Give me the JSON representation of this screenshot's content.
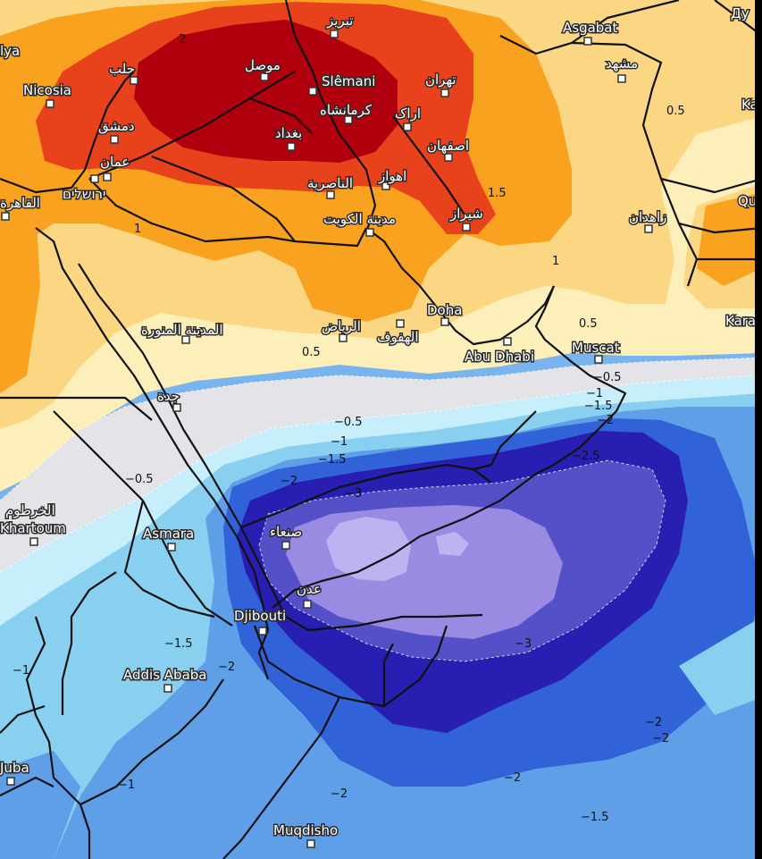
{
  "map": {
    "cities": [
      {
        "id": "asgabat",
        "label": "Asgabat"
      },
      {
        "id": "mashhad",
        "label": "مشهد"
      },
      {
        "id": "tabriz",
        "label": "تبريز"
      },
      {
        "id": "tehran",
        "label": "تهران"
      },
      {
        "id": "aleppo",
        "label": "حلب"
      },
      {
        "id": "mosul",
        "label": "موصل"
      },
      {
        "id": "slemani",
        "label": "Slêmani"
      },
      {
        "id": "nicosia",
        "label": "Nicosia"
      },
      {
        "id": "damascus",
        "label": "دمشق"
      },
      {
        "id": "kermanshah",
        "label": "كرمانشاه"
      },
      {
        "id": "arak",
        "label": "اراک"
      },
      {
        "id": "baghdad",
        "label": "بغداد"
      },
      {
        "id": "amman",
        "label": "عمان"
      },
      {
        "id": "isfahan",
        "label": "اصفهان"
      },
      {
        "id": "jerusalem",
        "label": "ירושלים"
      },
      {
        "id": "cairo",
        "label": "القاهرة"
      },
      {
        "id": "nasiriyah",
        "label": "الناصرية"
      },
      {
        "id": "ahvaz",
        "label": "اهواز"
      },
      {
        "id": "shiraz",
        "label": "شیراز"
      },
      {
        "id": "kuwait",
        "label": "مدينة الكويت"
      },
      {
        "id": "zahedan",
        "label": "زاهدان"
      },
      {
        "id": "doha",
        "label": "Doha"
      },
      {
        "id": "medina",
        "label": "المدينة المنورة"
      },
      {
        "id": "riyadh",
        "label": "الرياض"
      },
      {
        "id": "hofuf",
        "label": "الهفوف"
      },
      {
        "id": "abudhabi",
        "label": "Abu Dhabi"
      },
      {
        "id": "muscat",
        "label": "Muscat"
      },
      {
        "id": "jeddah",
        "label": "جدة"
      },
      {
        "id": "khartoum_ar",
        "label": "الخرطوم"
      },
      {
        "id": "khartoum",
        "label": "Khartoum"
      },
      {
        "id": "asmara",
        "label": "Asmara"
      },
      {
        "id": "sanaa",
        "label": "صنعاء"
      },
      {
        "id": "aden",
        "label": "عدن"
      },
      {
        "id": "djibouti",
        "label": "Djibouti"
      },
      {
        "id": "addis",
        "label": "Addis Ababa"
      },
      {
        "id": "juba",
        "label": "Juba"
      },
      {
        "id": "mogadishu",
        "label": "Muqdisho"
      },
      {
        "id": "karachi",
        "label": "Kara"
      },
      {
        "id": "quetta",
        "label": "Qu"
      },
      {
        "id": "kandahar",
        "label": "Ka"
      },
      {
        "id": "dushanbe",
        "label": "Ду"
      },
      {
        "id": "yalta",
        "label": "lya"
      }
    ],
    "contour_labels": [
      {
        "id": "c-top-2",
        "label": "2"
      },
      {
        "id": "c-1_5-iran",
        "label": "1.5"
      },
      {
        "id": "c-1-iran",
        "label": "1"
      },
      {
        "id": "c-1-jordan",
        "label": "1"
      },
      {
        "id": "c-0_5-ne",
        "label": "0.5"
      },
      {
        "id": "c-0_5-saudi",
        "label": "0.5"
      },
      {
        "id": "c-0_5-oman",
        "label": "0.5"
      },
      {
        "id": "c-neg0_5-a",
        "label": "−0.5"
      },
      {
        "id": "c-neg1-a",
        "label": "−1"
      },
      {
        "id": "c-neg1_5-a",
        "label": "−1.5"
      },
      {
        "id": "c-neg2-a",
        "label": "−2"
      },
      {
        "id": "c-neg3-a",
        "label": "−3"
      },
      {
        "id": "c-neg0_5-sud",
        "label": "−0.5"
      },
      {
        "id": "c-neg0_5-mus",
        "label": "−0.5"
      },
      {
        "id": "c-neg1-mus",
        "label": "−1"
      },
      {
        "id": "c-neg1_5-mus",
        "label": "−1.5"
      },
      {
        "id": "c-neg2-mus",
        "label": "−2"
      },
      {
        "id": "c-neg2_5-mus",
        "label": "−2.5"
      },
      {
        "id": "c-neg3-arab",
        "label": "−3"
      },
      {
        "id": "c-neg1_5-eth",
        "label": "−1.5"
      },
      {
        "id": "c-neg2-eth",
        "label": "−2"
      },
      {
        "id": "c-neg1-w",
        "label": "−1"
      },
      {
        "id": "c-neg1-sw",
        "label": "−1"
      },
      {
        "id": "c-neg2-som",
        "label": "−2"
      },
      {
        "id": "c-neg2-sea",
        "label": "−2"
      },
      {
        "id": "c-neg2-e1",
        "label": "−2"
      },
      {
        "id": "c-neg2-e2",
        "label": "−2"
      },
      {
        "id": "c-neg1_5-se",
        "label": "−1.5"
      }
    ]
  }
}
